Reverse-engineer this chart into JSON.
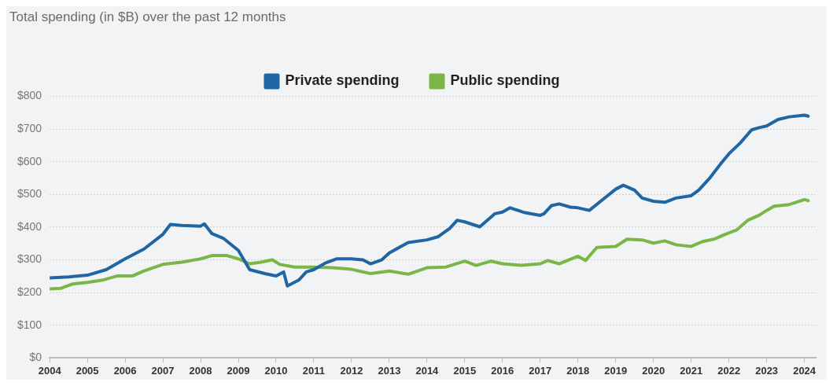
{
  "chart_data": {
    "type": "line",
    "title": "Total spending (in $B) over the past 12 months",
    "series": [
      {
        "name": "Private spending",
        "color": "#1f66a3",
        "x": [
          2004.0,
          2004.5,
          2005.0,
          2005.5,
          2006.0,
          2006.5,
          2007.0,
          2007.2,
          2007.5,
          2008.0,
          2008.1,
          2008.3,
          2008.6,
          2009.0,
          2009.3,
          2009.7,
          2010.0,
          2010.2,
          2010.3,
          2010.6,
          2010.8,
          2011.0,
          2011.3,
          2011.6,
          2012.0,
          2012.3,
          2012.5,
          2012.8,
          2013.0,
          2013.5,
          2014.0,
          2014.3,
          2014.6,
          2014.8,
          2015.0,
          2015.4,
          2015.8,
          2016.0,
          2016.2,
          2016.6,
          2017.0,
          2017.1,
          2017.3,
          2017.5,
          2017.8,
          2018.0,
          2018.3,
          2018.6,
          2019.0,
          2019.2,
          2019.5,
          2019.7,
          2020.0,
          2020.3,
          2020.6,
          2021.0,
          2021.2,
          2021.5,
          2021.8,
          2022.0,
          2022.3,
          2022.6,
          2022.8,
          2023.0,
          2023.3,
          2023.6,
          2024.0,
          2024.1
        ],
        "values": [
          245,
          248,
          253,
          270,
          303,
          333,
          378,
          408,
          405,
          403,
          410,
          380,
          366,
          329,
          270,
          258,
          251,
          263,
          220,
          238,
          263,
          270,
          290,
          303,
          303,
          300,
          288,
          300,
          321,
          353,
          361,
          371,
          396,
          421,
          416,
          401,
          441,
          446,
          459,
          444,
          436,
          441,
          466,
          471,
          461,
          459,
          451,
          479,
          516,
          528,
          513,
          489,
          479,
          476,
          489,
          496,
          513,
          551,
          596,
          624,
          657,
          697,
          704,
          709,
          729,
          737,
          742,
          739
        ]
      },
      {
        "name": "Public spending",
        "color": "#7ab648",
        "x": [
          2004.0,
          2004.3,
          2004.6,
          2005.0,
          2005.4,
          2005.8,
          2006.2,
          2006.5,
          2007.0,
          2007.5,
          2008.0,
          2008.3,
          2008.7,
          2009.0,
          2009.3,
          2009.6,
          2009.9,
          2010.1,
          2010.5,
          2011.0,
          2011.5,
          2012.0,
          2012.5,
          2013.0,
          2013.5,
          2014.0,
          2014.5,
          2015.0,
          2015.3,
          2015.7,
          2016.0,
          2016.5,
          2017.0,
          2017.2,
          2017.5,
          2018.0,
          2018.2,
          2018.5,
          2019.0,
          2019.3,
          2019.7,
          2020.0,
          2020.3,
          2020.6,
          2021.0,
          2021.3,
          2021.6,
          2021.9,
          2022.2,
          2022.5,
          2022.8,
          2023.0,
          2023.2,
          2023.6,
          2024.0,
          2024.1
        ],
        "values": [
          211,
          213,
          226,
          231,
          238,
          251,
          251,
          266,
          286,
          293,
          303,
          313,
          313,
          303,
          288,
          293,
          300,
          286,
          278,
          278,
          276,
          271,
          258,
          266,
          256,
          276,
          278,
          296,
          283,
          296,
          288,
          283,
          288,
          298,
          288,
          311,
          298,
          338,
          341,
          363,
          361,
          351,
          358,
          346,
          341,
          356,
          363,
          378,
          391,
          421,
          436,
          451,
          464,
          469,
          484,
          481
        ]
      }
    ],
    "xlim": [
      2004,
      2024.3
    ],
    "xticks": [
      2004,
      2005,
      2006,
      2007,
      2008,
      2009,
      2010,
      2011,
      2012,
      2013,
      2014,
      2015,
      2016,
      2017,
      2018,
      2019,
      2020,
      2021,
      2022,
      2023,
      2024
    ],
    "ylim": [
      0,
      800
    ],
    "yticks": [
      {
        "value": 0,
        "label": "$0"
      },
      {
        "value": 100,
        "label": "$100"
      },
      {
        "value": 200,
        "label": "$200"
      },
      {
        "value": 300,
        "label": "$300"
      },
      {
        "value": 400,
        "label": "$400"
      },
      {
        "value": 500,
        "label": "$500"
      },
      {
        "value": 600,
        "label": "$600"
      },
      {
        "value": 700,
        "label": "$700"
      },
      {
        "value": 800,
        "label": "$800"
      }
    ],
    "grid": "y",
    "legend": "top",
    "marker": "none",
    "line_style": "solid"
  }
}
